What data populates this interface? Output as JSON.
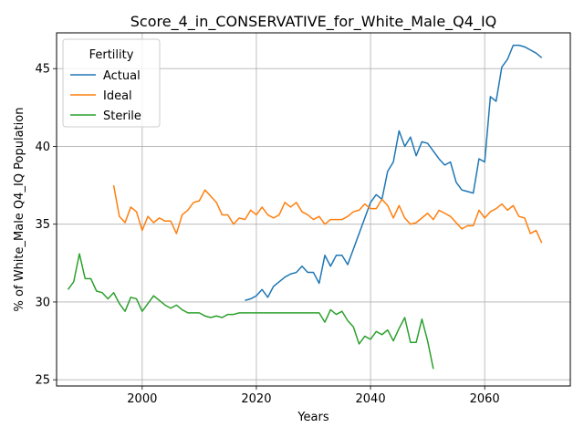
{
  "chart_data": {
    "type": "line",
    "title": "Score_4_in_CONSERVATIVE_for_White_Male_Q4_IQ",
    "xlabel": "Years",
    "ylabel": "% of White_Male Q4_IQ Population",
    "xlim": [
      1985,
      2075
    ],
    "ylim": [
      24.6,
      47.3
    ],
    "xticks": [
      2000,
      2020,
      2040,
      2060
    ],
    "yticks": [
      25,
      30,
      35,
      40,
      45
    ],
    "grid": true,
    "legend": {
      "title": "Fertility",
      "placement": "top-left"
    },
    "series": [
      {
        "name": "Actual",
        "color": "#1f77b4",
        "x": [
          2018,
          2019,
          2020,
          2021,
          2022,
          2023,
          2024,
          2025,
          2026,
          2027,
          2028,
          2029,
          2030,
          2031,
          2032,
          2033,
          2034,
          2035,
          2036,
          2037,
          2038,
          2039,
          2040,
          2041,
          2042,
          2043,
          2044,
          2045,
          2046,
          2047,
          2048,
          2049,
          2050,
          2051,
          2052,
          2053,
          2054,
          2055,
          2056,
          2057,
          2058,
          2059,
          2060,
          2061,
          2062,
          2063,
          2064,
          2065,
          2066,
          2067,
          2068,
          2069,
          2070
        ],
        "y": [
          30.1,
          30.2,
          30.4,
          30.8,
          30.3,
          31.0,
          31.3,
          31.6,
          31.8,
          31.9,
          32.3,
          31.9,
          31.9,
          31.2,
          33.0,
          32.3,
          33.0,
          33.0,
          32.4,
          33.4,
          34.4,
          35.4,
          36.4,
          36.9,
          36.6,
          38.4,
          39.0,
          41.0,
          40.0,
          40.6,
          39.4,
          40.3,
          40.2,
          39.7,
          39.2,
          38.8,
          39.0,
          37.7,
          37.2,
          37.1,
          37.0,
          39.2,
          39.0,
          43.2,
          42.9,
          45.1,
          45.6,
          46.5,
          46.5,
          46.4,
          46.2,
          46.0,
          45.7
        ]
      },
      {
        "name": "Ideal",
        "color": "#ff7f0e",
        "x": [
          1995,
          1996,
          1997,
          1998,
          1999,
          2000,
          2001,
          2002,
          2003,
          2004,
          2005,
          2006,
          2007,
          2008,
          2009,
          2010,
          2011,
          2012,
          2013,
          2014,
          2015,
          2016,
          2017,
          2018,
          2019,
          2020,
          2021,
          2022,
          2023,
          2024,
          2025,
          2026,
          2027,
          2028,
          2029,
          2030,
          2031,
          2032,
          2033,
          2034,
          2035,
          2036,
          2037,
          2038,
          2039,
          2040,
          2041,
          2042,
          2043,
          2044,
          2045,
          2046,
          2047,
          2048,
          2049,
          2050,
          2051,
          2052,
          2053,
          2054,
          2055,
          2056,
          2057,
          2058,
          2059,
          2060,
          2061,
          2062,
          2063,
          2064,
          2065,
          2066,
          2067,
          2068,
          2069,
          2070
        ],
        "y": [
          37.5,
          35.5,
          35.1,
          36.1,
          35.8,
          34.6,
          35.5,
          35.1,
          35.4,
          35.2,
          35.2,
          34.4,
          35.6,
          35.9,
          36.4,
          36.5,
          37.2,
          36.8,
          36.4,
          35.6,
          35.6,
          35.0,
          35.4,
          35.3,
          35.9,
          35.6,
          36.1,
          35.6,
          35.4,
          35.6,
          36.4,
          36.1,
          36.4,
          35.8,
          35.6,
          35.3,
          35.5,
          35.0,
          35.3,
          35.3,
          35.3,
          35.5,
          35.8,
          35.9,
          36.3,
          36.0,
          36.0,
          36.6,
          36.2,
          35.4,
          36.2,
          35.4,
          35.0,
          35.1,
          35.4,
          35.7,
          35.3,
          35.9,
          35.7,
          35.5,
          35.1,
          34.7,
          34.9,
          34.9,
          35.9,
          35.4,
          35.8,
          36.0,
          36.3,
          35.9,
          36.2,
          35.5,
          35.4,
          34.4,
          34.6,
          33.8
        ]
      },
      {
        "name": "Sterile",
        "color": "#2ca02c",
        "x": [
          1987,
          1988,
          1989,
          1990,
          1991,
          1992,
          1993,
          1994,
          1995,
          1996,
          1997,
          1998,
          1999,
          2000,
          2001,
          2002,
          2003,
          2004,
          2005,
          2006,
          2007,
          2008,
          2009,
          2010,
          2011,
          2012,
          2013,
          2014,
          2015,
          2016,
          2017,
          2018,
          2019,
          2020,
          2021,
          2022,
          2023,
          2024,
          2025,
          2026,
          2027,
          2028,
          2029,
          2030,
          2031,
          2032,
          2033,
          2034,
          2035,
          2036,
          2037,
          2038,
          2039,
          2040,
          2041,
          2042,
          2043,
          2044,
          2045,
          2046,
          2047,
          2048,
          2049,
          2050,
          2051
        ],
        "y": [
          30.8,
          31.3,
          33.1,
          31.5,
          31.5,
          30.7,
          30.6,
          30.2,
          30.6,
          29.9,
          29.4,
          30.3,
          30.2,
          29.4,
          29.9,
          30.4,
          30.1,
          29.8,
          29.6,
          29.8,
          29.5,
          29.3,
          29.3,
          29.3,
          29.1,
          29.0,
          29.1,
          29.0,
          29.2,
          29.2,
          29.3,
          29.3,
          29.3,
          29.3,
          29.3,
          29.3,
          29.3,
          29.3,
          29.3,
          29.3,
          29.3,
          29.3,
          29.3,
          29.3,
          29.3,
          28.7,
          29.5,
          29.2,
          29.4,
          28.8,
          28.4,
          27.3,
          27.8,
          27.6,
          28.1,
          27.9,
          28.2,
          27.5,
          28.3,
          29.0,
          27.4,
          27.4,
          28.9,
          27.5,
          25.7
        ]
      }
    ]
  }
}
